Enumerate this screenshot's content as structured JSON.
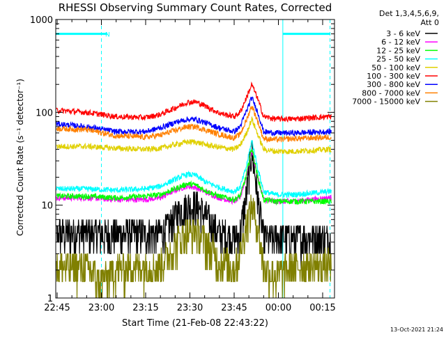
{
  "chart_data": {
    "type": "line",
    "title": "RHESSI Observing Summary Count Rates, Corrected",
    "xlabel": "Start Time (21-Feb-08 22:43:22)",
    "ylabel": "Corrected Count Rate (s⁻¹ detector⁻¹)",
    "y_scale": "log",
    "ylim": [
      1,
      1000
    ],
    "xlim_minutes": [
      -1.4,
      36
    ],
    "y_ticks": [
      {
        "value": 1,
        "label": "1"
      },
      {
        "value": 10,
        "label": "10"
      },
      {
        "value": 100,
        "label": "100"
      },
      {
        "value": 1000,
        "label": "1000"
      }
    ],
    "x_ticks": [
      {
        "value": 0,
        "label": "22:45"
      },
      {
        "value": 15,
        "label": "23:00"
      },
      {
        "value": 30,
        "label": "23:15"
      },
      {
        "value": 45,
        "label": "23:30"
      },
      {
        "value": 60,
        "label": "23:45"
      },
      {
        "value": 75,
        "label": "00:00"
      },
      {
        "value": 90,
        "label": "00:15"
      }
    ],
    "x_ticks_minutes_from_2245": [
      0,
      15,
      30,
      45,
      60,
      75,
      90
    ],
    "legend_header": [
      "Det 1,3,4,5,6,9,",
      "Att 0"
    ],
    "legend_position": "right",
    "grid": false,
    "series": [
      {
        "name": "3 - 6 keV",
        "color": "#000000",
        "x": [
          0,
          10,
          20,
          30,
          35,
          38,
          41,
          44,
          47,
          50,
          55,
          60,
          62,
          64,
          66,
          68,
          70,
          74,
          80,
          92
        ],
        "values": [
          5,
          5,
          5,
          5,
          5,
          6,
          8.5,
          10,
          10,
          8,
          5,
          4.5,
          5,
          12,
          40,
          12,
          4.5,
          4.5,
          4.5,
          4.5
        ]
      },
      {
        "name": "6 - 12 keV",
        "color": "#ff00ff",
        "x": [
          0,
          10,
          20,
          30,
          35,
          40,
          44,
          47,
          50,
          55,
          60,
          62,
          64,
          66,
          68,
          70,
          74,
          80,
          92
        ],
        "values": [
          12,
          12,
          11.5,
          11.5,
          12,
          14.5,
          16,
          15.5,
          14,
          12,
          11,
          12,
          20,
          40,
          20,
          11.5,
          11,
          11,
          12
        ]
      },
      {
        "name": "12 - 25 keV",
        "color": "#00ff00",
        "x": [
          0,
          10,
          20,
          30,
          35,
          40,
          44,
          47,
          50,
          55,
          60,
          62,
          64,
          66,
          68,
          70,
          74,
          80,
          92
        ],
        "values": [
          12.5,
          12.5,
          12,
          12.5,
          13,
          15,
          17,
          16.5,
          14.5,
          12.5,
          11.5,
          12.5,
          20,
          42,
          20,
          11.5,
          11,
          11,
          11
        ]
      },
      {
        "name": "25 - 50 keV",
        "color": "#00ffff",
        "x": [
          0,
          10,
          20,
          30,
          35,
          40,
          44,
          47,
          50,
          55,
          60,
          62,
          64,
          66,
          68,
          70,
          74,
          80,
          92
        ],
        "values": [
          15,
          15,
          14.5,
          15,
          16,
          19,
          21.5,
          21,
          18,
          15.5,
          14,
          15.5,
          25,
          50,
          25,
          14,
          13,
          13,
          14
        ]
      },
      {
        "name": "50 - 100 keV",
        "color": "#e0d000",
        "x": [
          0,
          10,
          20,
          30,
          35,
          40,
          44,
          47,
          50,
          55,
          60,
          62,
          64,
          66,
          68,
          70,
          74,
          80,
          92
        ],
        "values": [
          43,
          43,
          41,
          40,
          41,
          45,
          48,
          48,
          45,
          42,
          40,
          44,
          58,
          85,
          58,
          40,
          38,
          38,
          40
        ]
      },
      {
        "name": "100 - 300 keV",
        "color": "#ff0000",
        "x": [
          0,
          10,
          20,
          30,
          35,
          40,
          44,
          47,
          50,
          55,
          60,
          62,
          64,
          66,
          68,
          70,
          74,
          80,
          92
        ],
        "values": [
          105,
          100,
          90,
          88,
          95,
          112,
          128,
          130,
          118,
          98,
          90,
          100,
          140,
          200,
          140,
          90,
          85,
          85,
          90
        ]
      },
      {
        "name": "300 - 800 keV",
        "color": "#0000ff",
        "x": [
          0,
          10,
          20,
          30,
          35,
          40,
          44,
          47,
          50,
          55,
          60,
          62,
          64,
          66,
          68,
          70,
          74,
          80,
          92
        ],
        "values": [
          75,
          70,
          62,
          62,
          68,
          78,
          84,
          84,
          78,
          68,
          62,
          70,
          100,
          145,
          100,
          62,
          60,
          60,
          62
        ]
      },
      {
        "name": "800 - 7000 keV",
        "color": "#ff8000",
        "x": [
          0,
          10,
          20,
          30,
          35,
          40,
          44,
          47,
          50,
          55,
          60,
          62,
          64,
          66,
          68,
          70,
          74,
          80,
          92
        ],
        "values": [
          67,
          65,
          56,
          54,
          57,
          64,
          70,
          70,
          65,
          58,
          53,
          58,
          80,
          118,
          80,
          52,
          51,
          52,
          54
        ]
      },
      {
        "name": "7000 - 15000 keV",
        "color": "#808000",
        "x": [
          0,
          10,
          15,
          20,
          30,
          35,
          38,
          41,
          44,
          47,
          50,
          55,
          60,
          62,
          64,
          66,
          68,
          70,
          74,
          80,
          92
        ],
        "values": [
          2.2,
          2.2,
          1.5,
          2.1,
          2.2,
          2.3,
          3,
          4.3,
          5,
          5.2,
          4.2,
          2.5,
          2.2,
          3,
          6,
          10,
          6,
          2.2,
          1.8,
          2.2,
          2.3
        ]
      }
    ],
    "annotations": [
      {
        "type": "dashed-vline",
        "x": 15,
        "color": "#00ffff"
      },
      {
        "type": "solid-vline",
        "x": 76.5,
        "color": "#00ffff"
      },
      {
        "type": "dashed-vline",
        "x": 92.5,
        "color": "#00ffff"
      },
      {
        "type": "hbar",
        "x_from": -1.4,
        "x_to": 17,
        "y": 700,
        "color": "#00ffff",
        "label": "N"
      },
      {
        "type": "hbar",
        "x_from": 76.5,
        "x_to": 92.5,
        "y": 700,
        "color": "#00ffff",
        "label": ""
      }
    ]
  },
  "footer_timestamp": "13-Oct-2021 21:24",
  "colors": {
    "annotation": "#00ffff",
    "axis": "#000000",
    "background": "#ffffff"
  }
}
